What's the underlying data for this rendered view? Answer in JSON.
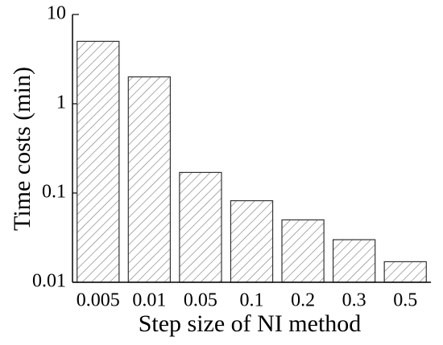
{
  "chart_data": {
    "type": "bar",
    "xlabel": "Step size of NI method",
    "ylabel": "Time costs (min)",
    "categories": [
      "0.005",
      "0.01",
      "0.05",
      "0.1",
      "0.2",
      "0.3",
      "0.5"
    ],
    "values": [
      5,
      2,
      0.17,
      0.082,
      0.05,
      0.03,
      0.017
    ],
    "color": "#555555",
    "ylim": [
      0.01,
      10
    ],
    "yticks": [
      0.01,
      0.1,
      1,
      10
    ],
    "ylog": true,
    "grid": false
  }
}
